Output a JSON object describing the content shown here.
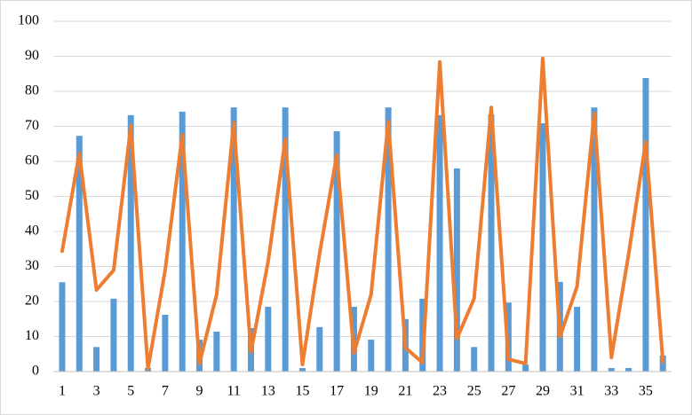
{
  "chart_data": {
    "type": "bar-line",
    "categories": [
      "1",
      null,
      "3",
      null,
      "5",
      null,
      "7",
      null,
      "9",
      null,
      "11",
      null,
      "13",
      null,
      "15",
      null,
      "17",
      null,
      "19",
      null,
      "21",
      null,
      "23",
      null,
      "25",
      null,
      "27",
      null,
      "29",
      null,
      "31",
      null,
      "33",
      null,
      "35",
      null
    ],
    "series": [
      {
        "type": "bar",
        "color": "#5b9bd5",
        "values": [
          25.5,
          67.3,
          7,
          20.8,
          73.2,
          1,
          16.2,
          74.2,
          9.1,
          11.4,
          75.4,
          12.4,
          18.5,
          75.4,
          1,
          12.7,
          68.6,
          18.5,
          9.1,
          75.4,
          15,
          20.8,
          73.2,
          58,
          7,
          73.4,
          19.7,
          2,
          70.9,
          25.6,
          18.5,
          75.4,
          1,
          1,
          83.8,
          4.6
        ]
      },
      {
        "type": "line",
        "color": "#ed7d31",
        "values": [
          34.4,
          62.3,
          23.3,
          28.9,
          70.1,
          0.8,
          28.9,
          67.6,
          2.3,
          22,
          71.1,
          5.6,
          31.4,
          66.3,
          2,
          33.7,
          61.8,
          5.3,
          22,
          71.4,
          6.8,
          2.5,
          88.4,
          9.4,
          20.8,
          75.4,
          3.5,
          2.3,
          89.4,
          9.9,
          24.3,
          73.7,
          4,
          33.4,
          65.6,
          2.8
        ]
      }
    ],
    "ylim": [
      0,
      100
    ],
    "yticks": [
      0,
      10,
      20,
      30,
      40,
      50,
      60,
      70,
      80,
      90,
      100
    ],
    "grid": true
  }
}
